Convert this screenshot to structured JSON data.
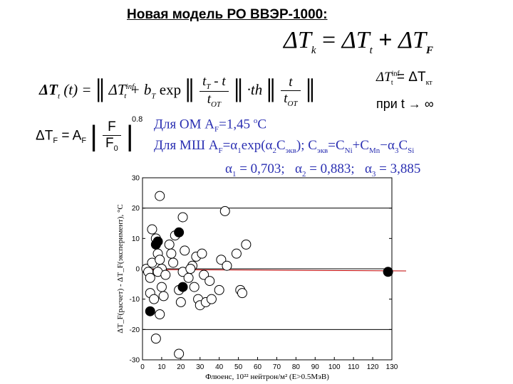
{
  "title": "Новая модель РО ВВЭР-1000:",
  "formula_top": {
    "lhs": "ΔT",
    "lhs_sub": "k",
    "eq": "=",
    "t1": "ΔT",
    "t1_sub": "t",
    "plus": "+",
    "t2": "ΔT",
    "t2_sub": "F"
  },
  "formula_main": {
    "lhs": "ΔT",
    "lhs_sub": "t",
    "lhs_arg": " (t) =",
    "term1": "ΔT",
    "term1_sub": "t",
    "term1_sup": "inf",
    "plus_b": "+ b",
    "b_sub": "T",
    "exp": " exp",
    "num1": "t",
    "num1_sub": "T",
    "num1_rest": " - t",
    "den1": "t",
    "den1_sub": "OT",
    "th": "·th",
    "num2": "t",
    "den2": "t",
    "den2_sub": "OT"
  },
  "side_formula": {
    "lhs": "ΔT",
    "lhs_sub": "t",
    "lhs_sup": "inf",
    "eq": " = ΔT",
    "rhs_sub": "кт",
    "when": "при  t → ∞"
  },
  "formula_F": {
    "lhs": "ΔT",
    "lhs_sub": "F",
    "eq": " = A",
    "a_sub": "F",
    "num": "F",
    "den": "F",
    "den_sub": "0",
    "power": "0.8"
  },
  "notes": {
    "line1_a": "Для ОМ A",
    "line1_sub": "F",
    "line1_b": "=1,45 ",
    "line1_sup": "o",
    "line1_c": "С",
    "line2_a": "Для МШ A",
    "line2_sub1": "F",
    "line2_b": "=α",
    "line2_sub2": "1",
    "line2_c": "exp(α",
    "line2_sub3": "2",
    "line2_d": "C",
    "line2_sub4": "экв",
    "line2_e": "); C",
    "line2_sub5": "экв",
    "line2_f": "=C",
    "line2_sub6": "Ni",
    "line2_g": "+C",
    "line2_sub7": "Mn",
    "line2_h": "−α",
    "line2_sub8": "3",
    "line2_i": "C",
    "line2_sub9": "Si",
    "line3_a1": "α",
    "line3_s1": "1",
    "line3_v1": " = 0,703;",
    "line3_a2": "α",
    "line3_s2": "2",
    "line3_v2": " = 0,883;",
    "line3_a3": "α",
    "line3_s3": "3",
    "line3_v3": " = 3,885"
  },
  "chart_data": {
    "type": "scatter",
    "title": "",
    "xlabel": "Флюенс, 10²² нейтрон/м² (E>0.5МэВ)",
    "ylabel": "ΔT_F(расчет) - ΔT_F(эксперимент), °C",
    "xlim": [
      0,
      130
    ],
    "ylim": [
      -30,
      30
    ],
    "xticks": [
      0,
      10,
      20,
      30,
      40,
      50,
      60,
      70,
      80,
      90,
      100,
      110,
      120,
      130
    ],
    "yticks": [
      -30,
      -20,
      -10,
      0,
      10,
      20,
      30
    ],
    "gridlines_y": [
      -20,
      0,
      20
    ],
    "line_color": "#c00000",
    "series": [
      {
        "marker": "open-circle",
        "points": [
          [
            2,
            0
          ],
          [
            3,
            -1
          ],
          [
            4,
            -3
          ],
          [
            5,
            2
          ],
          [
            4,
            -8
          ],
          [
            6,
            -10
          ],
          [
            5,
            13
          ],
          [
            7,
            10
          ],
          [
            8,
            5
          ],
          [
            9,
            3
          ],
          [
            10,
            0
          ],
          [
            8,
            -1
          ],
          [
            12,
            -2
          ],
          [
            10,
            -6
          ],
          [
            11,
            -9
          ],
          [
            9,
            24
          ],
          [
            14,
            8
          ],
          [
            15,
            5
          ],
          [
            16,
            2
          ],
          [
            17,
            11
          ],
          [
            19,
            -7
          ],
          [
            20,
            -11
          ],
          [
            21,
            -1
          ],
          [
            22,
            6
          ],
          [
            21,
            17
          ],
          [
            24,
            -3
          ],
          [
            26,
            1
          ],
          [
            27,
            -6
          ],
          [
            28,
            4
          ],
          [
            29,
            -10
          ],
          [
            30,
            -12
          ],
          [
            31,
            5
          ],
          [
            32,
            -2
          ],
          [
            33,
            -11
          ],
          [
            35,
            -4
          ],
          [
            36,
            -10
          ],
          [
            19,
            -28
          ],
          [
            7,
            -23
          ],
          [
            9,
            -15
          ],
          [
            41,
            3
          ],
          [
            44,
            1
          ],
          [
            49,
            5
          ],
          [
            51,
            -7
          ],
          [
            52,
            -8
          ],
          [
            43,
            19
          ],
          [
            54,
            8
          ],
          [
            40,
            -7
          ],
          [
            25,
            0
          ]
        ]
      },
      {
        "marker": "filled-circle",
        "points": [
          [
            4,
            -14
          ],
          [
            7,
            8
          ],
          [
            8,
            9
          ],
          [
            19,
            12
          ],
          [
            21,
            -6
          ],
          [
            128,
            -1
          ]
        ]
      }
    ]
  }
}
